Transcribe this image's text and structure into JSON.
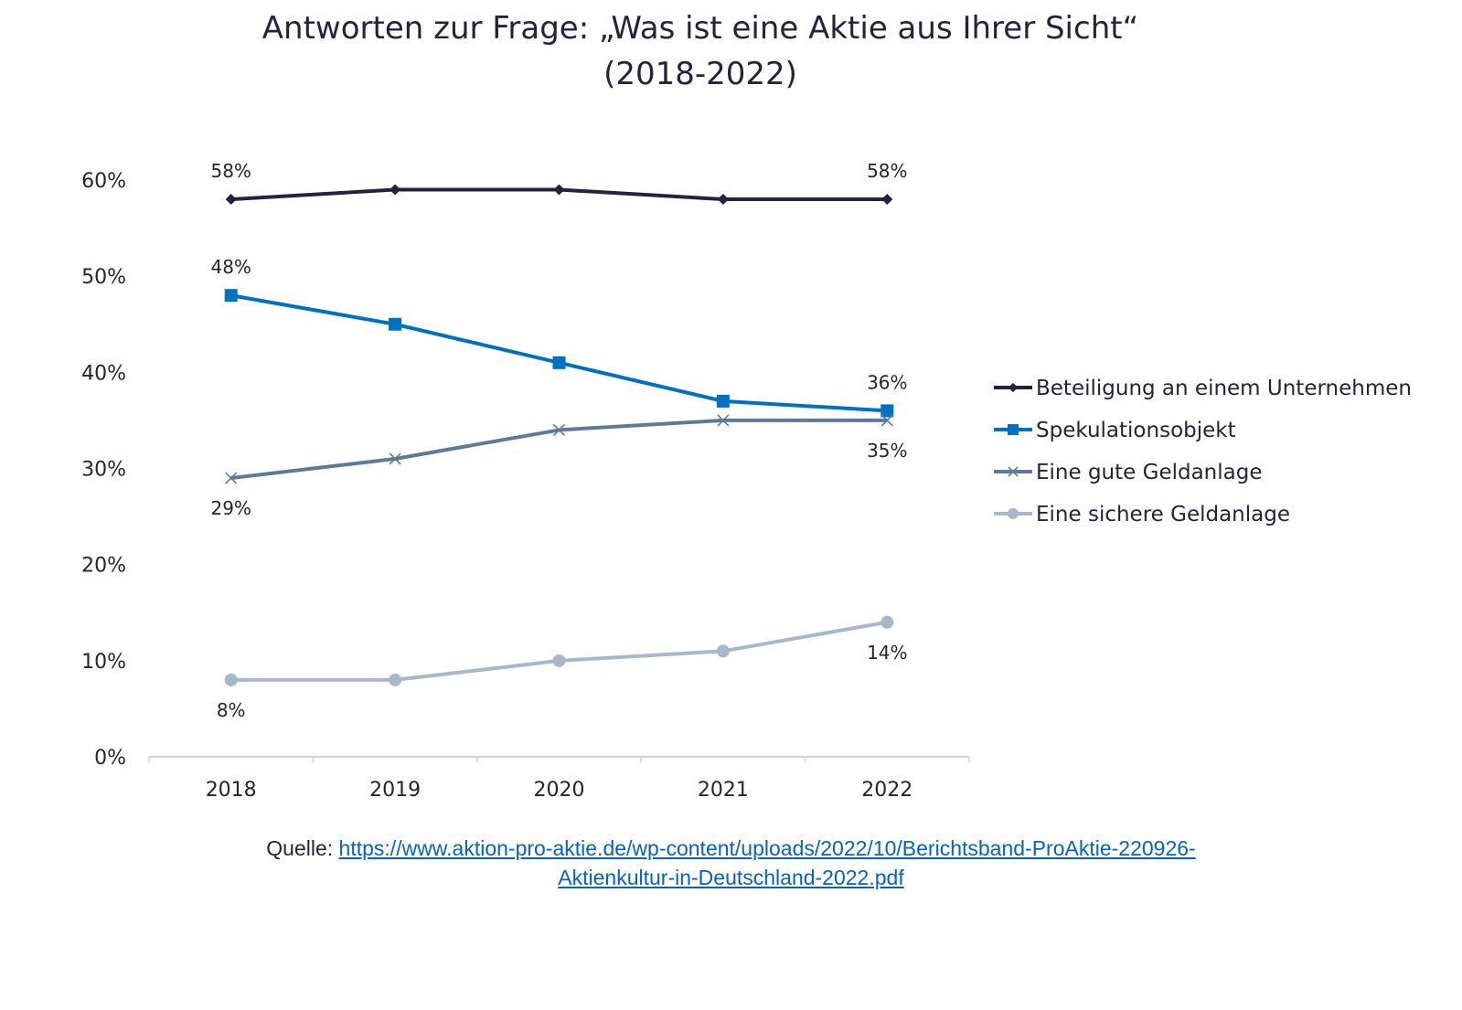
{
  "chart_data": {
    "type": "line",
    "title": "Antworten zur Frage: „Was ist eine Aktie aus Ihrer Sicht“",
    "subtitle": "(2018-2022)",
    "xlabel": "",
    "ylabel": "",
    "categories": [
      "2018",
      "2019",
      "2020",
      "2021",
      "2022"
    ],
    "ylim": [
      0,
      60
    ],
    "yticks": [
      "0%",
      "10%",
      "20%",
      "30%",
      "40%",
      "50%",
      "60%"
    ],
    "grid": false,
    "legend": "right",
    "series": [
      {
        "name": "Beteiligung an einem Unternehmen",
        "values": [
          58,
          59,
          59,
          58,
          58
        ],
        "color": "#23233f",
        "marker": "diamond",
        "labels": [
          "58%",
          null,
          null,
          null,
          "58%"
        ],
        "label_side": [
          "above",
          null,
          null,
          null,
          "above"
        ]
      },
      {
        "name": "Spekulationsobjekt",
        "values": [
          48,
          45,
          41,
          37,
          36
        ],
        "color": "#0070c0",
        "marker": "square",
        "labels": [
          "48%",
          null,
          null,
          null,
          "36%"
        ],
        "label_side": [
          "above",
          null,
          null,
          null,
          "above"
        ]
      },
      {
        "name": "Eine gute Geldanlage",
        "values": [
          29,
          31,
          34,
          35,
          35
        ],
        "color": "#5d7a99",
        "marker": "x",
        "labels": [
          "29%",
          null,
          null,
          null,
          "35%"
        ],
        "label_side": [
          "below",
          null,
          null,
          null,
          "below"
        ]
      },
      {
        "name": "Eine sichere Geldanlage",
        "values": [
          8,
          8,
          10,
          11,
          14
        ],
        "color": "#a7b8ca",
        "marker": "circle",
        "labels": [
          "8%",
          null,
          null,
          null,
          "14%"
        ],
        "label_side": [
          "below",
          null,
          null,
          null,
          "below"
        ]
      }
    ]
  },
  "source": {
    "prefix": "Quelle: ",
    "link_line1": "https://www.aktion-pro-aktie.de/wp-content/uploads/2022/10/Berichtsband-ProAktie-220926-",
    "link_line2": "Aktienkultur-in-Deutschland-2022.pdf"
  }
}
